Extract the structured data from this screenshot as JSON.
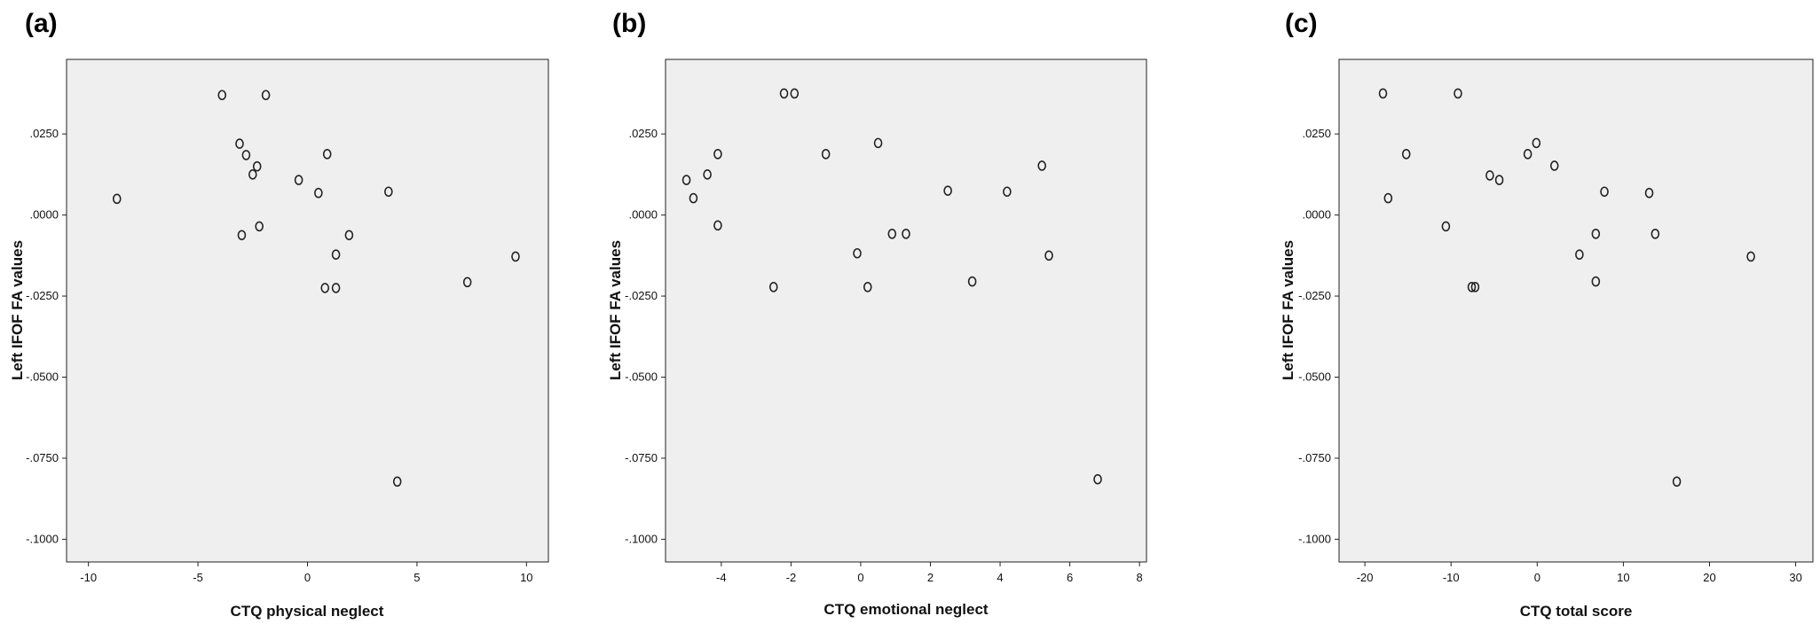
{
  "chart_data": [
    {
      "type": "scatter",
      "panel": "(a)",
      "xlabel": "CTQ physical neglect",
      "ylabel": "Left IFOF FA values",
      "xlim": [
        -11,
        11
      ],
      "ylim": [
        -0.107,
        0.048
      ],
      "xticks": [
        -10,
        -5,
        0,
        5,
        10
      ],
      "xtick_labels": [
        "-10",
        "-5",
        "0",
        "5",
        "10"
      ],
      "yticks": [
        0.025,
        0.0,
        -0.025,
        -0.05,
        -0.075,
        -0.1
      ],
      "ytick_labels": [
        ".0250",
        ".0000",
        "-.0250",
        "-.0500",
        "-.0750",
        "-.1000"
      ],
      "grid": false,
      "points": [
        {
          "x": -8.7,
          "y": 0.005
        },
        {
          "x": -3.9,
          "y": 0.037
        },
        {
          "x": -1.9,
          "y": 0.037
        },
        {
          "x": -3.1,
          "y": 0.022
        },
        {
          "x": -2.8,
          "y": 0.0185
        },
        {
          "x": -2.3,
          "y": 0.015
        },
        {
          "x": -2.5,
          "y": 0.0125
        },
        {
          "x": -0.4,
          "y": 0.0108
        },
        {
          "x": 0.9,
          "y": 0.0188
        },
        {
          "x": 0.5,
          "y": 0.0068
        },
        {
          "x": 3.7,
          "y": 0.0072
        },
        {
          "x": -3.0,
          "y": -0.0062
        },
        {
          "x": -2.2,
          "y": -0.0035
        },
        {
          "x": 1.9,
          "y": -0.0062
        },
        {
          "x": 1.3,
          "y": -0.0122
        },
        {
          "x": 0.8,
          "y": -0.0225
        },
        {
          "x": 1.3,
          "y": -0.0225
        },
        {
          "x": 7.3,
          "y": -0.0207
        },
        {
          "x": 9.5,
          "y": -0.0128
        },
        {
          "x": 4.1,
          "y": -0.0822
        }
      ]
    },
    {
      "type": "scatter",
      "panel": "(b)",
      "xlabel": "CTQ emotional neglect",
      "ylabel": "Left IFOF FA values",
      "xlim": [
        -5.6,
        8.2
      ],
      "ylim": [
        -0.107,
        0.048
      ],
      "xticks": [
        -4,
        -2,
        0,
        2,
        4,
        6,
        8
      ],
      "xtick_labels": [
        "-4",
        "-2",
        "0",
        "2",
        "4",
        "6",
        "8"
      ],
      "yticks": [
        0.025,
        0.0,
        -0.025,
        -0.05,
        -0.075,
        -0.1
      ],
      "ytick_labels": [
        ".0250",
        ".0000",
        "-.0250",
        "-.0500",
        "-.0750",
        "-.1000"
      ],
      "grid": false,
      "points": [
        {
          "x": -5.0,
          "y": 0.0108
        },
        {
          "x": -4.8,
          "y": 0.0052
        },
        {
          "x": -4.4,
          "y": 0.0125
        },
        {
          "x": -4.1,
          "y": 0.0188
        },
        {
          "x": -4.1,
          "y": -0.0032
        },
        {
          "x": -2.5,
          "y": -0.0222
        },
        {
          "x": -2.2,
          "y": 0.0375
        },
        {
          "x": -1.9,
          "y": 0.0375
        },
        {
          "x": -1.0,
          "y": 0.0188
        },
        {
          "x": 0.5,
          "y": 0.0222
        },
        {
          "x": -0.1,
          "y": -0.0118
        },
        {
          "x": 0.2,
          "y": -0.0222
        },
        {
          "x": 0.9,
          "y": -0.0058
        },
        {
          "x": 1.3,
          "y": -0.0058
        },
        {
          "x": 2.5,
          "y": 0.0075
        },
        {
          "x": 3.2,
          "y": -0.0205
        },
        {
          "x": 4.2,
          "y": 0.0072
        },
        {
          "x": 5.2,
          "y": 0.0152
        },
        {
          "x": 5.4,
          "y": -0.0125
        },
        {
          "x": 6.8,
          "y": -0.0815
        }
      ]
    },
    {
      "type": "scatter",
      "panel": "(c)",
      "xlabel": "CTQ total score",
      "ylabel": "Left IFOF FA values",
      "xlim": [
        -23,
        32
      ],
      "ylim": [
        -0.107,
        0.048
      ],
      "xticks": [
        -20,
        -10,
        0,
        10,
        20,
        30
      ],
      "xtick_labels": [
        "-20",
        "-10",
        "0",
        "10",
        "20",
        "30"
      ],
      "yticks": [
        0.025,
        0.0,
        -0.025,
        -0.05,
        -0.075,
        -0.1
      ],
      "ytick_labels": [
        ".0250",
        ".0000",
        "-.0250",
        "-.0500",
        "-.0750",
        "-.1000"
      ],
      "grid": false,
      "points": [
        {
          "x": -17.9,
          "y": 0.0375
        },
        {
          "x": -9.2,
          "y": 0.0375
        },
        {
          "x": -15.2,
          "y": 0.0188
        },
        {
          "x": -17.3,
          "y": 0.0052
        },
        {
          "x": -10.6,
          "y": -0.0035
        },
        {
          "x": -5.5,
          "y": 0.0122
        },
        {
          "x": -4.4,
          "y": 0.0108
        },
        {
          "x": -1.1,
          "y": 0.0188
        },
        {
          "x": -0.1,
          "y": 0.0222
        },
        {
          "x": 2.0,
          "y": 0.0152
        },
        {
          "x": 7.8,
          "y": 0.0072
        },
        {
          "x": 13.0,
          "y": 0.0068
        },
        {
          "x": -7.6,
          "y": -0.0222
        },
        {
          "x": -7.2,
          "y": -0.0222
        },
        {
          "x": 4.9,
          "y": -0.0122
        },
        {
          "x": 6.8,
          "y": -0.0058
        },
        {
          "x": 6.8,
          "y": -0.0205
        },
        {
          "x": 13.7,
          "y": -0.0058
        },
        {
          "x": 24.8,
          "y": -0.0128
        },
        {
          "x": 16.2,
          "y": -0.0822
        }
      ]
    }
  ]
}
